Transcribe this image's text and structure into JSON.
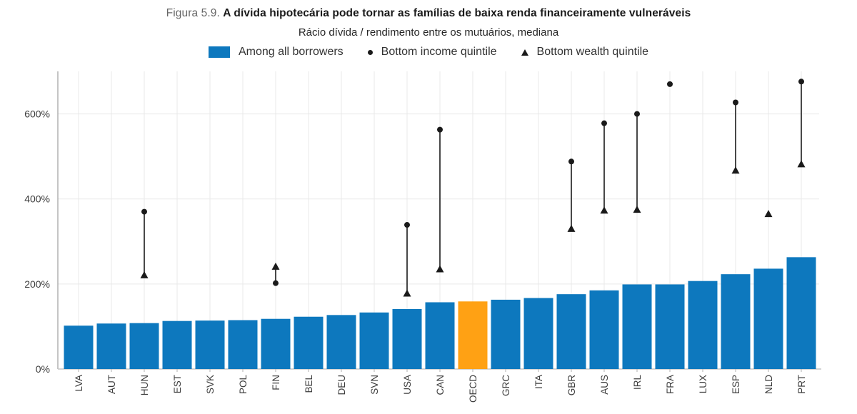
{
  "figure": {
    "title_prefix": "Figura 5.9.",
    "title_main": "A dívida hipotecária pode tornar as famílias de baixa renda financeiramente vulneráveis",
    "subtitle": "Rácio dívida / rendimento entre os mutuários, mediana"
  },
  "legend": {
    "bar_label": "Among all borrowers",
    "income_label": "Bottom income quintile",
    "wealth_label": "Bottom wealth quintile"
  },
  "colors": {
    "bar": "#0d78be",
    "highlight": "#ffa114",
    "marker": "#1a1a1a",
    "grid": "#e9e9e9",
    "axis_line": "#9e9e9e",
    "baseline": "#c6c6c6",
    "tick": "#b0b0b0",
    "text": "#3c3c3c"
  },
  "chart_data": {
    "type": "bar",
    "title": "Figura 5.9. A dívida hipotecária pode tornar as famílias de baixa renda financeiramente vulneráveis",
    "subtitle": "Rácio dívida / rendimento entre os mutuários, mediana",
    "unit": "percent",
    "ylim": [
      0,
      700
    ],
    "yticks": [
      0,
      200,
      400,
      600
    ],
    "ytick_labels": [
      "0%",
      "200%",
      "400%",
      "600%"
    ],
    "grid": true,
    "legend_position": "top",
    "highlight_category": "OECD",
    "categories": [
      "LVA",
      "AUT",
      "HUN",
      "EST",
      "SVK",
      "POL",
      "FIN",
      "BEL",
      "DEU",
      "SVN",
      "USA",
      "CAN",
      "OECD",
      "GRC",
      "ITA",
      "GBR",
      "AUS",
      "IRL",
      "FRA",
      "LUX",
      "ESP",
      "NLD",
      "PRT"
    ],
    "series": [
      {
        "name": "Among all borrowers",
        "type": "bar",
        "values": [
          102,
          107,
          108,
          113,
          114,
          115,
          118,
          123,
          127,
          133,
          141,
          157,
          159,
          163,
          167,
          176,
          185,
          199,
          199,
          207,
          223,
          236,
          263
        ]
      },
      {
        "name": "Bottom income quintile",
        "type": "point",
        "marker": "circle",
        "values": [
          null,
          null,
          370,
          null,
          null,
          null,
          202,
          null,
          null,
          null,
          339,
          563,
          null,
          null,
          null,
          488,
          578,
          600,
          670,
          null,
          627,
          null,
          676
        ]
      },
      {
        "name": "Bottom wealth quintile",
        "type": "point",
        "marker": "triangle",
        "values": [
          null,
          null,
          221,
          null,
          null,
          null,
          241,
          null,
          null,
          null,
          178,
          235,
          null,
          null,
          null,
          330,
          373,
          375,
          null,
          null,
          467,
          365,
          482
        ]
      }
    ]
  }
}
